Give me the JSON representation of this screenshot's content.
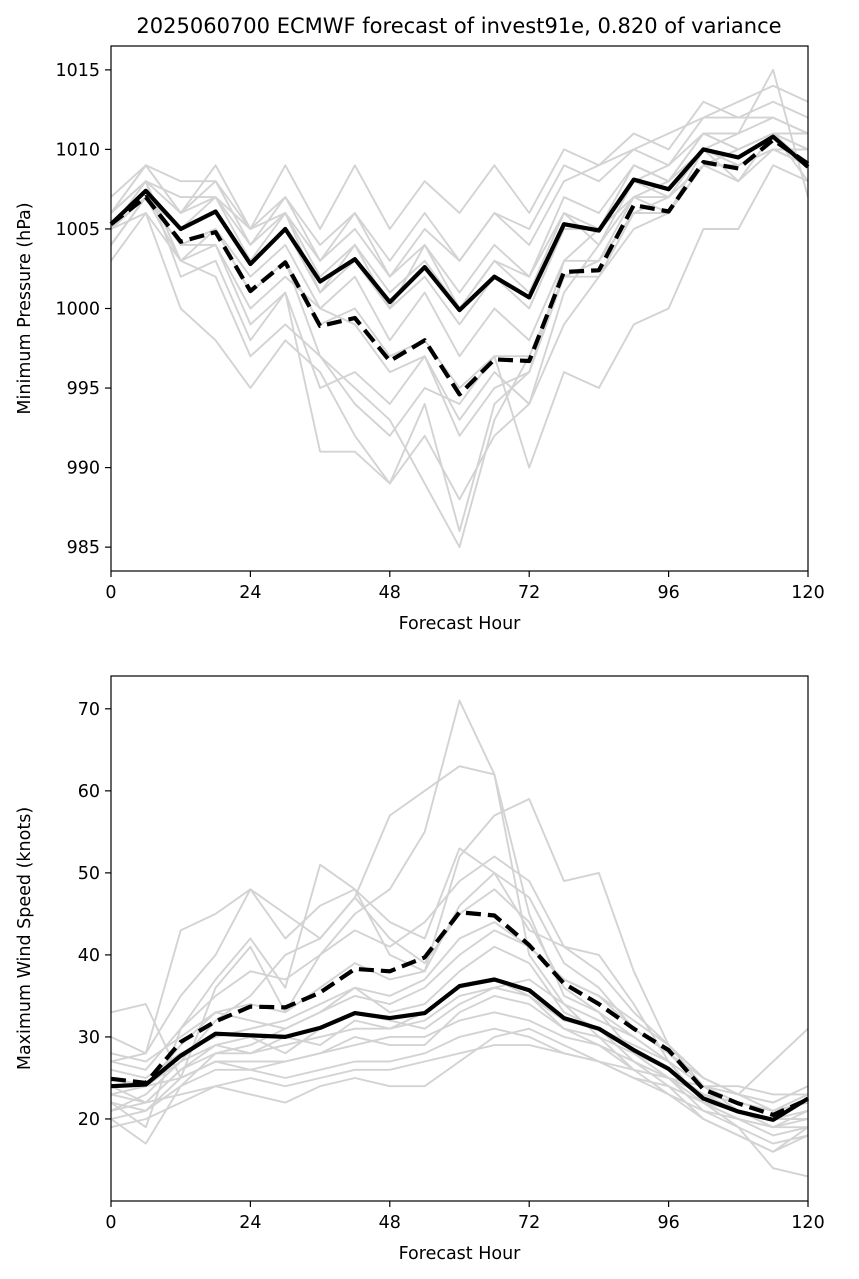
{
  "colors": {
    "member": "#d3d3d3",
    "mean": "#000000",
    "deterministic": "#000000",
    "background": "#ffffff"
  },
  "chart_data": [
    {
      "type": "line",
      "title": "2025060700 ECMWF forecast of invest91e, 0.820 of variance",
      "xlabel": "Forecast Hour",
      "ylabel": "Minimum Pressure (hPa)",
      "xlim": [
        0,
        120
      ],
      "ylim": [
        983.5,
        1016.5
      ],
      "xticks": [
        0,
        24,
        48,
        72,
        96,
        120
      ],
      "xtick_labels": [
        "0",
        "24",
        "48",
        "72",
        "96",
        "120"
      ],
      "yticks": [
        985,
        990,
        995,
        1000,
        1005,
        1010,
        1015
      ],
      "ytick_labels": [
        "985",
        "990",
        "995",
        "1000",
        "1005",
        "1010",
        "1015"
      ],
      "grid": false,
      "x": [
        0,
        6,
        12,
        18,
        24,
        30,
        36,
        42,
        48,
        54,
        60,
        66,
        72,
        78,
        84,
        90,
        96,
        102,
        108,
        114,
        120
      ],
      "highlight": [
        {
          "style": "solid",
          "values": [
            1005.3,
            1007.4,
            1005.0,
            1006.1,
            1002.8,
            1005.0,
            1001.7,
            1003.1,
            1000.4,
            1002.6,
            999.9,
            1002.0,
            1000.7,
            1005.3,
            1004.9,
            1008.1,
            1007.5,
            1010.0,
            1009.5,
            1010.8,
            1008.9
          ]
        },
        {
          "style": "dashed",
          "values": [
            1005.3,
            1007.0,
            1004.2,
            1004.8,
            1001.1,
            1002.9,
            998.9,
            999.4,
            996.7,
            998.0,
            994.6,
            996.8,
            996.7,
            1002.3,
            1002.4,
            1006.5,
            1006.1,
            1009.2,
            1008.8,
            1010.6,
            1009.1
          ]
        }
      ],
      "members": [
        [
          1006,
          1009,
          1008,
          1008,
          1005,
          1007,
          1004,
          1006,
          1002,
          1005,
          1003,
          1006,
          1004,
          1008,
          1009,
          1010,
          1011,
          1012,
          1012,
          1012,
          1011
        ],
        [
          1005,
          1008,
          1006,
          1007,
          1004,
          1006,
          1002,
          1004,
          1001,
          1003,
          1000,
          1003,
          1001,
          1006,
          1005,
          1009,
          1008,
          1011,
          1010,
          1011,
          1009
        ],
        [
          1004,
          1007,
          1005,
          1006,
          1003,
          1005,
          1001,
          1003,
          1000,
          1002,
          999,
          1002,
          1000,
          1005,
          1005,
          1008,
          1007,
          1010,
          1009,
          1010,
          1009
        ],
        [
          1005,
          1007,
          1004,
          1005,
          1001,
          1003,
          999,
          1000,
          997,
          998,
          995,
          997,
          997,
          1002,
          1002,
          1006,
          1006,
          1009,
          1009,
          1010,
          1010
        ],
        [
          1006,
          1008,
          1007,
          1007,
          1005,
          1006,
          1003,
          1005,
          1002,
          1004,
          1001,
          1004,
          1002,
          1007,
          1006,
          1009,
          1008,
          1011,
          1010,
          1011,
          1010
        ],
        [
          1003,
          1006,
          1000,
          998,
          995,
          998,
          996,
          992,
          989,
          992,
          988,
          992,
          994,
          1001,
          1004,
          1008,
          1009,
          1012,
          1013,
          1014,
          1013
        ],
        [
          1005,
          1007,
          1004,
          1004,
          999,
          1001,
          991,
          991,
          989,
          994,
          986,
          994,
          996,
          1003,
          1005,
          1007,
          1008,
          1010,
          1011,
          1015,
          1007
        ],
        [
          1004,
          1007,
          1004,
          1005,
          1001,
          1003,
          997,
          995,
          993,
          989,
          985,
          993,
          997,
          1002,
          1003,
          1007,
          1007,
          1009,
          1010,
          1011,
          1008
        ],
        [
          1006,
          1008,
          1002,
          1003,
          998,
          1001,
          995,
          996,
          994,
          997,
          992,
          995,
          996,
          1002,
          1003,
          1006,
          1007,
          1009,
          1008,
          1010,
          1010
        ],
        [
          1007,
          1009,
          1006,
          1009,
          1005,
          1009,
          1005,
          1009,
          1005,
          1008,
          1006,
          1009,
          1006,
          1010,
          1009,
          1011,
          1010,
          1013,
          1012,
          1013,
          1012
        ],
        [
          1005,
          1006,
          1003,
          1002,
          997,
          999,
          997,
          994,
          992,
          995,
          994,
          997,
          990,
          996,
          995,
          999,
          1000,
          1005,
          1005,
          1009,
          1008
        ],
        [
          1006,
          1008,
          1003,
          1004,
          1000,
          1002,
          1000,
          999,
          996,
          997,
          993,
          996,
          994,
          999,
          1002,
          1005,
          1006,
          1010,
          1008,
          1011,
          1011
        ],
        [
          1004,
          1007,
          1005,
          1007,
          1003,
          1006,
          1001,
          1004,
          1000,
          1004,
          1000,
          1003,
          1002,
          1006,
          1004,
          1007,
          1006,
          1009,
          1009,
          1010,
          1009
        ],
        [
          1005,
          1007,
          1003,
          1005,
          1002,
          1004,
          1000,
          1002,
          998,
          1001,
          997,
          1000,
          998,
          1003,
          1003,
          1006,
          1006,
          1009,
          1010,
          1011,
          1010
        ],
        [
          1006,
          1009,
          1006,
          1008,
          1004,
          1007,
          1003,
          1006,
          1003,
          1006,
          1003,
          1006,
          1005,
          1009,
          1008,
          1010,
          1009,
          1011,
          1011,
          1012,
          1011
        ]
      ]
    },
    {
      "type": "line",
      "title": "",
      "xlabel": "Forecast Hour",
      "ylabel": "Maximum Wind Speed (knots)",
      "xlim": [
        0,
        120
      ],
      "ylim": [
        10,
        74
      ],
      "xticks": [
        0,
        24,
        48,
        72,
        96,
        120
      ],
      "xtick_labels": [
        "0",
        "24",
        "48",
        "72",
        "96",
        "120"
      ],
      "yticks": [
        20,
        30,
        40,
        50,
        60,
        70
      ],
      "ytick_labels": [
        "20",
        "30",
        "40",
        "50",
        "60",
        "70"
      ],
      "grid": false,
      "x": [
        0,
        6,
        12,
        18,
        24,
        30,
        36,
        42,
        48,
        54,
        60,
        66,
        72,
        78,
        84,
        90,
        96,
        102,
        108,
        114,
        120
      ],
      "highlight": [
        {
          "style": "solid",
          "values": [
            24.0,
            24.2,
            27.7,
            30.4,
            30.2,
            30.0,
            31.1,
            32.9,
            32.3,
            32.9,
            36.2,
            37.0,
            35.7,
            32.3,
            31.0,
            28.4,
            26.1,
            22.5,
            20.9,
            19.9,
            22.5
          ]
        },
        {
          "style": "dashed",
          "values": [
            24.9,
            24.4,
            29.4,
            31.9,
            33.7,
            33.6,
            35.4,
            38.3,
            38.0,
            39.7,
            45.2,
            44.8,
            41.2,
            36.5,
            34.0,
            31.0,
            28.4,
            23.6,
            21.9,
            20.5,
            22.4
          ]
        }
      ],
      "members": [
        [
          33,
          34,
          25,
          36,
          41,
          33,
          40,
          45,
          48,
          55,
          71,
          62,
          45,
          35,
          33,
          30,
          27,
          22,
          20,
          18,
          19
        ],
        [
          30,
          28,
          43,
          45,
          48,
          45,
          42,
          47,
          57,
          60,
          63,
          62,
          40,
          34,
          30,
          26,
          23,
          20,
          18,
          16,
          18
        ],
        [
          27,
          28,
          35,
          40,
          48,
          42,
          46,
          48,
          40,
          38,
          52,
          57,
          59,
          49,
          50,
          38,
          29,
          24,
          21,
          19,
          20
        ],
        [
          22,
          19,
          31,
          37,
          42,
          36,
          51,
          48,
          44,
          42,
          53,
          50,
          43,
          41,
          40,
          34,
          27,
          22,
          19,
          17,
          18
        ],
        [
          25,
          24,
          27,
          32,
          35,
          40,
          42,
          47,
          42,
          39,
          45,
          48,
          44,
          36,
          33,
          28,
          25,
          21,
          19,
          14,
          13
        ],
        [
          20,
          17,
          24,
          28,
          29,
          31,
          33,
          36,
          33,
          34,
          38,
          41,
          39,
          33,
          31,
          27,
          24,
          20,
          18,
          16,
          19
        ],
        [
          21,
          22,
          26,
          29,
          28,
          30,
          29,
          32,
          31,
          33,
          36,
          37,
          35,
          31,
          29,
          26,
          25,
          22,
          20,
          19,
          21
        ],
        [
          23,
          24,
          25,
          27,
          26,
          27,
          28,
          29,
          30,
          30,
          32,
          33,
          32,
          30,
          29,
          27,
          25,
          23,
          22,
          21,
          22
        ],
        [
          26,
          25,
          28,
          30,
          31,
          32,
          34,
          36,
          35,
          37,
          42,
          44,
          41,
          37,
          35,
          32,
          29,
          25,
          23,
          22,
          24
        ],
        [
          24,
          22,
          23,
          24,
          25,
          24,
          25,
          26,
          26,
          27,
          28,
          29,
          29,
          28,
          27,
          26,
          25,
          24,
          24,
          23,
          23
        ],
        [
          25,
          24,
          29,
          33,
          34,
          33,
          36,
          39,
          37,
          38,
          46,
          50,
          47,
          39,
          36,
          31,
          28,
          24,
          22,
          21,
          23
        ],
        [
          19,
          20,
          22,
          24,
          23,
          22,
          24,
          25,
          24,
          24,
          27,
          30,
          31,
          29,
          27,
          25,
          23,
          21,
          20,
          19,
          19
        ],
        [
          28,
          27,
          30,
          33,
          32,
          31,
          33,
          35,
          34,
          36,
          40,
          43,
          41,
          37,
          35,
          31,
          28,
          25,
          23,
          22,
          24
        ],
        [
          22,
          21,
          25,
          27,
          27,
          27,
          28,
          30,
          29,
          29,
          33,
          35,
          34,
          31,
          30,
          28,
          26,
          23,
          21,
          20,
          21
        ],
        [
          20,
          21,
          24,
          26,
          26,
          25,
          26,
          27,
          27,
          28,
          30,
          31,
          30,
          28,
          27,
          25,
          24,
          22,
          21,
          20,
          20
        ],
        [
          27,
          26,
          31,
          35,
          38,
          37,
          40,
          43,
          41,
          44,
          49,
          52,
          49,
          41,
          38,
          33,
          29,
          25,
          23,
          21,
          23
        ],
        [
          23,
          22,
          26,
          28,
          28,
          29,
          30,
          31,
          31,
          32,
          35,
          36,
          35,
          32,
          31,
          29,
          27,
          24,
          22,
          21,
          22
        ],
        [
          21,
          23,
          27,
          29,
          30,
          28,
          31,
          33,
          32,
          31,
          34,
          36,
          37,
          34,
          32,
          30,
          27,
          24,
          23,
          27,
          31
        ]
      ]
    }
  ]
}
